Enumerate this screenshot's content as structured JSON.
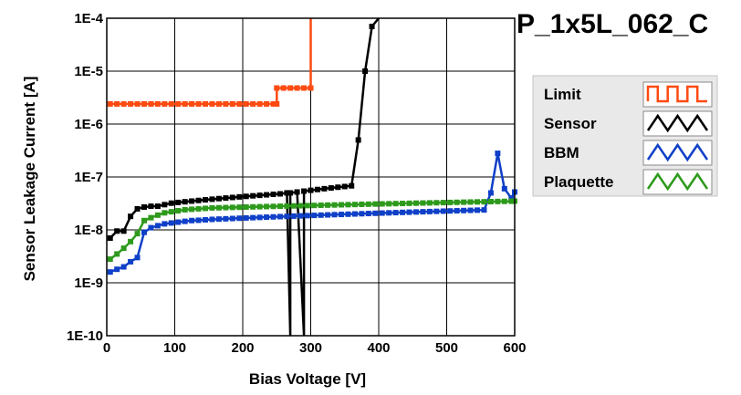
{
  "chart_data": {
    "type": "line",
    "title": "P_1x5L_062_C",
    "xlabel": "Bias Voltage [V]",
    "ylabel": "Sensor Leakage Current [A]",
    "xlim": [
      0,
      600
    ],
    "ylim": [
      1e-10,
      0.0001
    ],
    "yscale": "log",
    "grid": true,
    "legend_position": "right",
    "x_ticks": [
      0,
      100,
      200,
      300,
      400,
      500,
      600
    ],
    "x_tick_labels": [
      "0",
      "100",
      "200",
      "300",
      "400",
      "500",
      "600"
    ],
    "y_ticks": [
      1e-10,
      1e-09,
      1e-08,
      1e-07,
      1e-06,
      1e-05,
      0.0001
    ],
    "y_tick_labels": [
      "1E-10",
      "1E-9",
      "1E-8",
      "1E-7",
      "1E-6",
      "1E-5",
      "1E-4"
    ],
    "series": [
      {
        "name": "Limit",
        "color": "#ff4a12",
        "points": [
          [
            5,
            2.4e-06
          ],
          [
            15,
            2.4e-06
          ],
          [
            25,
            2.4e-06
          ],
          [
            35,
            2.4e-06
          ],
          [
            45,
            2.4e-06
          ],
          [
            55,
            2.4e-06
          ],
          [
            65,
            2.4e-06
          ],
          [
            75,
            2.4e-06
          ],
          [
            85,
            2.4e-06
          ],
          [
            95,
            2.4e-06
          ],
          [
            105,
            2.4e-06
          ],
          [
            115,
            2.4e-06
          ],
          [
            125,
            2.4e-06
          ],
          [
            135,
            2.4e-06
          ],
          [
            145,
            2.4e-06
          ],
          [
            155,
            2.4e-06
          ],
          [
            165,
            2.4e-06
          ],
          [
            175,
            2.4e-06
          ],
          [
            185,
            2.4e-06
          ],
          [
            195,
            2.4e-06
          ],
          [
            205,
            2.4e-06
          ],
          [
            215,
            2.4e-06
          ],
          [
            225,
            2.4e-06
          ],
          [
            235,
            2.4e-06
          ],
          [
            245,
            2.4e-06
          ],
          [
            250,
            2.4e-06
          ],
          [
            250,
            4.8e-06
          ],
          [
            260,
            4.8e-06
          ],
          [
            270,
            4.8e-06
          ],
          [
            280,
            4.8e-06
          ],
          [
            290,
            4.8e-06
          ],
          [
            300,
            4.8e-06
          ],
          [
            300,
            0.0001
          ]
        ]
      },
      {
        "name": "Sensor",
        "color": "#000000",
        "points": [
          [
            5,
            7e-09
          ],
          [
            15,
            9.5e-09
          ],
          [
            25,
            9.5e-09
          ],
          [
            35,
            1.8e-08
          ],
          [
            45,
            2.5e-08
          ],
          [
            55,
            2.7e-08
          ],
          [
            65,
            2.8e-08
          ],
          [
            75,
            2.8e-08
          ],
          [
            85,
            3e-08
          ],
          [
            95,
            3.2e-08
          ],
          [
            105,
            3.3e-08
          ],
          [
            115,
            3.4e-08
          ],
          [
            125,
            3.5e-08
          ],
          [
            135,
            3.6e-08
          ],
          [
            145,
            3.7e-08
          ],
          [
            155,
            3.8e-08
          ],
          [
            165,
            3.9e-08
          ],
          [
            175,
            4e-08
          ],
          [
            185,
            4.1e-08
          ],
          [
            195,
            4.2e-08
          ],
          [
            205,
            4.3e-08
          ],
          [
            215,
            4.4e-08
          ],
          [
            225,
            4.5e-08
          ],
          [
            235,
            4.6e-08
          ],
          [
            245,
            4.7e-08
          ],
          [
            255,
            4.8e-08
          ],
          [
            265,
            5e-08
          ],
          [
            270,
            1e-10
          ],
          [
            270,
            5e-08
          ],
          [
            280,
            5.2e-08
          ],
          [
            290,
            1e-10
          ],
          [
            290,
            5.4e-08
          ],
          [
            300,
            5.6e-08
          ],
          [
            310,
            5.8e-08
          ],
          [
            320,
            6e-08
          ],
          [
            330,
            6.2e-08
          ],
          [
            340,
            6.4e-08
          ],
          [
            350,
            6.6e-08
          ],
          [
            360,
            6.8e-08
          ],
          [
            370,
            5e-07
          ],
          [
            380,
            1e-05
          ],
          [
            390,
            7e-05
          ],
          [
            400,
            0.0001
          ]
        ]
      },
      {
        "name": "BBM",
        "color": "#1040c8",
        "points": [
          [
            5,
            1.6e-09
          ],
          [
            15,
            1.8e-09
          ],
          [
            25,
            2e-09
          ],
          [
            35,
            2.5e-09
          ],
          [
            45,
            3e-09
          ],
          [
            55,
            9e-09
          ],
          [
            65,
            1.1e-08
          ],
          [
            75,
            1.2e-08
          ],
          [
            85,
            1.3e-08
          ],
          [
            95,
            1.35e-08
          ],
          [
            105,
            1.4e-08
          ],
          [
            115,
            1.45e-08
          ],
          [
            125,
            1.5e-08
          ],
          [
            135,
            1.52e-08
          ],
          [
            145,
            1.55e-08
          ],
          [
            155,
            1.58e-08
          ],
          [
            165,
            1.6e-08
          ],
          [
            175,
            1.62e-08
          ],
          [
            185,
            1.64e-08
          ],
          [
            195,
            1.66e-08
          ],
          [
            205,
            1.68e-08
          ],
          [
            215,
            1.7e-08
          ],
          [
            225,
            1.72e-08
          ],
          [
            235,
            1.74e-08
          ],
          [
            245,
            1.76e-08
          ],
          [
            255,
            1.78e-08
          ],
          [
            265,
            1.8e-08
          ],
          [
            275,
            1.82e-08
          ],
          [
            285,
            1.84e-08
          ],
          [
            295,
            1.86e-08
          ],
          [
            305,
            1.88e-08
          ],
          [
            315,
            1.9e-08
          ],
          [
            325,
            1.92e-08
          ],
          [
            335,
            1.94e-08
          ],
          [
            345,
            1.96e-08
          ],
          [
            355,
            1.98e-08
          ],
          [
            365,
            2e-08
          ],
          [
            375,
            2.02e-08
          ],
          [
            385,
            2.04e-08
          ],
          [
            395,
            2.06e-08
          ],
          [
            405,
            2.08e-08
          ],
          [
            415,
            2.1e-08
          ],
          [
            425,
            2.12e-08
          ],
          [
            435,
            2.14e-08
          ],
          [
            445,
            2.16e-08
          ],
          [
            455,
            2.18e-08
          ],
          [
            465,
            2.2e-08
          ],
          [
            475,
            2.22e-08
          ],
          [
            485,
            2.24e-08
          ],
          [
            495,
            2.26e-08
          ],
          [
            505,
            2.28e-08
          ],
          [
            515,
            2.3e-08
          ],
          [
            525,
            2.32e-08
          ],
          [
            535,
            2.34e-08
          ],
          [
            545,
            2.36e-08
          ],
          [
            555,
            2.38e-08
          ],
          [
            565,
            5e-08
          ],
          [
            575,
            2.8e-07
          ],
          [
            585,
            6e-08
          ],
          [
            595,
            4e-08
          ],
          [
            600,
            5.2e-08
          ]
        ]
      },
      {
        "name": "Plaquette",
        "color": "#2e9a1c",
        "points": [
          [
            5,
            2.8e-09
          ],
          [
            15,
            3.5e-09
          ],
          [
            25,
            4.5e-09
          ],
          [
            35,
            6e-09
          ],
          [
            45,
            8.5e-09
          ],
          [
            55,
            1.5e-08
          ],
          [
            65,
            1.7e-08
          ],
          [
            75,
            1.9e-08
          ],
          [
            85,
            2.1e-08
          ],
          [
            95,
            2.2e-08
          ],
          [
            105,
            2.3e-08
          ],
          [
            115,
            2.4e-08
          ],
          [
            125,
            2.45e-08
          ],
          [
            135,
            2.5e-08
          ],
          [
            145,
            2.55e-08
          ],
          [
            155,
            2.6e-08
          ],
          [
            165,
            2.62e-08
          ],
          [
            175,
            2.64e-08
          ],
          [
            185,
            2.66e-08
          ],
          [
            195,
            2.68e-08
          ],
          [
            205,
            2.7e-08
          ],
          [
            215,
            2.72e-08
          ],
          [
            225,
            2.74e-08
          ],
          [
            235,
            2.76e-08
          ],
          [
            245,
            2.78e-08
          ],
          [
            255,
            2.8e-08
          ],
          [
            265,
            2.82e-08
          ],
          [
            275,
            2.84e-08
          ],
          [
            285,
            2.86e-08
          ],
          [
            295,
            2.88e-08
          ],
          [
            305,
            2.9e-08
          ],
          [
            315,
            2.92e-08
          ],
          [
            325,
            2.94e-08
          ],
          [
            335,
            2.96e-08
          ],
          [
            345,
            2.98e-08
          ],
          [
            355,
            3e-08
          ],
          [
            365,
            3.02e-08
          ],
          [
            375,
            3.04e-08
          ],
          [
            385,
            3.06e-08
          ],
          [
            395,
            3.08e-08
          ],
          [
            405,
            3.1e-08
          ],
          [
            415,
            3.12e-08
          ],
          [
            425,
            3.14e-08
          ],
          [
            435,
            3.16e-08
          ],
          [
            445,
            3.18e-08
          ],
          [
            455,
            3.2e-08
          ],
          [
            465,
            3.22e-08
          ],
          [
            475,
            3.24e-08
          ],
          [
            485,
            3.26e-08
          ],
          [
            495,
            3.28e-08
          ],
          [
            505,
            3.3e-08
          ],
          [
            515,
            3.32e-08
          ],
          [
            525,
            3.34e-08
          ],
          [
            535,
            3.36e-08
          ],
          [
            545,
            3.38e-08
          ],
          [
            555,
            3.4e-08
          ],
          [
            565,
            3.42e-08
          ],
          [
            575,
            3.44e-08
          ],
          [
            585,
            3.46e-08
          ],
          [
            595,
            3.48e-08
          ],
          [
            600,
            3.5e-08
          ]
        ]
      }
    ]
  }
}
